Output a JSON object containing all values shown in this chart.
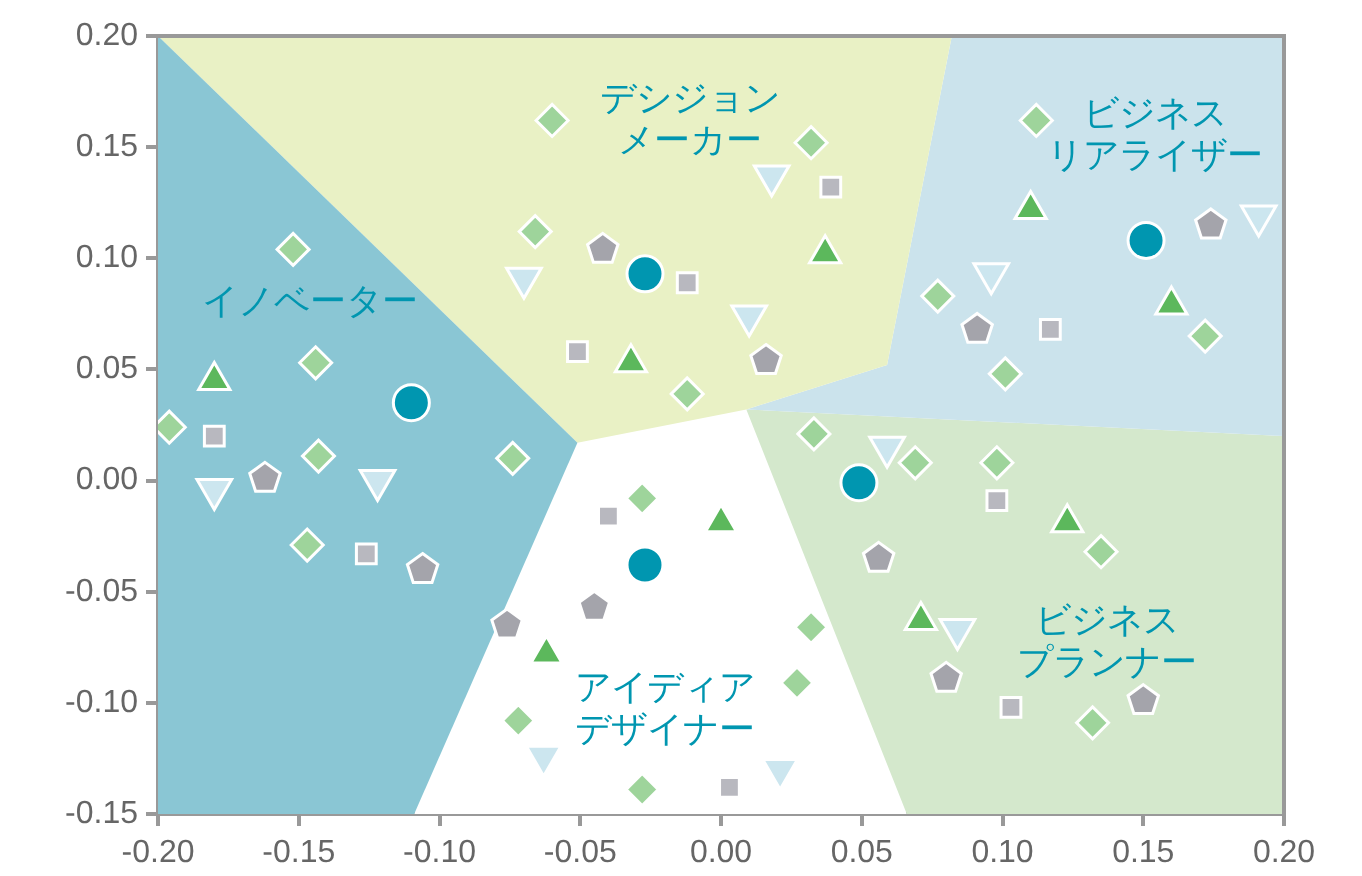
{
  "chart_data": {
    "type": "scatter",
    "xlim": [
      -0.2,
      0.2
    ],
    "ylim": [
      -0.15,
      0.2
    ],
    "xticks": [
      {
        "value": -0.2,
        "label": "-0.20"
      },
      {
        "value": -0.15,
        "label": "-0.15"
      },
      {
        "value": -0.1,
        "label": "-0.10"
      },
      {
        "value": -0.05,
        "label": "-0.05"
      },
      {
        "value": 0,
        "label": "0.00"
      },
      {
        "value": 0.05,
        "label": "0.05"
      },
      {
        "value": 0.1,
        "label": "0.10"
      },
      {
        "value": 0.15,
        "label": "0.15"
      },
      {
        "value": 0.2,
        "label": "0.20"
      }
    ],
    "yticks": [
      {
        "value": -0.15,
        "label": "-0.15"
      },
      {
        "value": -0.1,
        "label": "-0.10"
      },
      {
        "value": -0.05,
        "label": "-0.05"
      },
      {
        "value": 0,
        "label": "0.00"
      },
      {
        "value": 0.05,
        "label": "0.05"
      },
      {
        "value": 0.1,
        "label": "0.10"
      },
      {
        "value": 0.15,
        "label": "0.15"
      },
      {
        "value": 0.2,
        "label": "0.20"
      }
    ],
    "grid": false,
    "legend": false,
    "series": [
      {
        "type": "area",
        "name": "イノベーター",
        "color": "#8ac6d4",
        "x": [
          -0.2,
          -0.051,
          -0.109,
          -0.2,
          -0.2
        ],
        "values": [
          0.2,
          0.017,
          -0.15,
          -0.15,
          0.2
        ]
      },
      {
        "type": "area",
        "name": "デシジョンメーカー",
        "color": "#e9f1c5",
        "x": [
          -0.2,
          0.082,
          0.059,
          0.009,
          -0.051,
          -0.2
        ],
        "values": [
          0.2,
          0.2,
          0.052,
          0.032,
          0.017,
          0.2
        ]
      },
      {
        "type": "area",
        "name": "ビジネスリアライザー",
        "color": "#cbe3ec",
        "x": [
          0.082,
          0.2,
          0.2,
          0.009,
          0.059,
          0.082
        ],
        "values": [
          0.2,
          0.2,
          0.02,
          0.032,
          0.052,
          0.2
        ]
      },
      {
        "type": "area",
        "name": "ビジネスプランナー",
        "color": "#d4e8cc",
        "x": [
          0.009,
          0.2,
          0.2,
          0.066,
          0.009
        ],
        "values": [
          0.032,
          0.02,
          -0.15,
          -0.15,
          0.032
        ]
      },
      {
        "type": "area",
        "name": "アイディアデザイナー",
        "color": "#ffffff",
        "x": [
          -0.051,
          0.009,
          0.066,
          -0.109,
          -0.051
        ],
        "values": [
          0.017,
          0.032,
          -0.15,
          -0.15,
          0.017
        ]
      },
      {
        "type": "scatter",
        "marker": "diamond",
        "color": "#9ed49b",
        "x": [
          -0.06,
          -0.066,
          -0.152,
          -0.144,
          -0.196,
          -0.143,
          -0.074,
          -0.147,
          -0.012,
          0.032,
          0.112,
          0.077,
          0.101,
          0.172,
          0.033,
          0.069,
          0.098,
          0.135,
          -0.028,
          0.032,
          0.027,
          0.132,
          -0.072,
          -0.028
        ],
        "values": [
          0.162,
          0.112,
          0.104,
          0.053,
          0.024,
          0.011,
          0.01,
          -0.029,
          0.039,
          0.152,
          0.162,
          0.083,
          0.048,
          0.065,
          0.021,
          0.008,
          0.008,
          -0.032,
          -0.008,
          -0.066,
          -0.091,
          -0.109,
          -0.108,
          -0.139
        ]
      },
      {
        "type": "scatter",
        "marker": "triangle",
        "color": "#5cb85c",
        "x": [
          -0.18,
          -0.032,
          0.037,
          0.11,
          0.16,
          0.0,
          0.123,
          0.071,
          -0.062
        ],
        "values": [
          0.045,
          0.053,
          0.102,
          0.122,
          0.079,
          -0.019,
          -0.019,
          -0.063,
          -0.078
        ]
      },
      {
        "type": "scatter",
        "marker": "square",
        "color": "#b8b8bf",
        "x": [
          -0.18,
          -0.012,
          -0.051,
          0.039,
          0.117,
          -0.126,
          -0.04,
          0.098,
          0.103,
          0.003
        ],
        "values": [
          0.02,
          0.089,
          0.058,
          0.132,
          0.068,
          -0.033,
          -0.016,
          -0.009,
          -0.102,
          -0.138
        ]
      },
      {
        "type": "scatter",
        "color": "#a4a4ab",
        "x": [
          -0.042,
          0.016,
          0.091,
          0.174,
          -0.162,
          -0.106,
          -0.076,
          -0.045,
          0.056,
          0.08,
          0.15
        ],
        "values": [
          0.104,
          0.054,
          0.068,
          0.115,
          0.001,
          -0.04,
          -0.065,
          -0.057,
          -0.035,
          -0.089,
          -0.099
        ]
      },
      {
        "type": "scatter",
        "marker": "triangle-down",
        "color": "#cce6ef",
        "x": [
          -0.07,
          0.018,
          0.01,
          0.096,
          0.191,
          -0.18,
          -0.122,
          0.059,
          0.084,
          -0.063,
          0.021
        ],
        "values": [
          0.091,
          0.137,
          0.074,
          0.093,
          0.119,
          -0.004,
          0.0,
          0.015,
          -0.067,
          -0.124,
          -0.13
        ]
      },
      {
        "type": "scatter",
        "marker": "circle",
        "color": "#0096b0",
        "x": [
          -0.11,
          -0.027,
          0.151,
          0.049,
          -0.027
        ],
        "values": [
          0.035,
          0.093,
          0.108,
          -0.001,
          -0.038
        ]
      }
    ]
  }
}
